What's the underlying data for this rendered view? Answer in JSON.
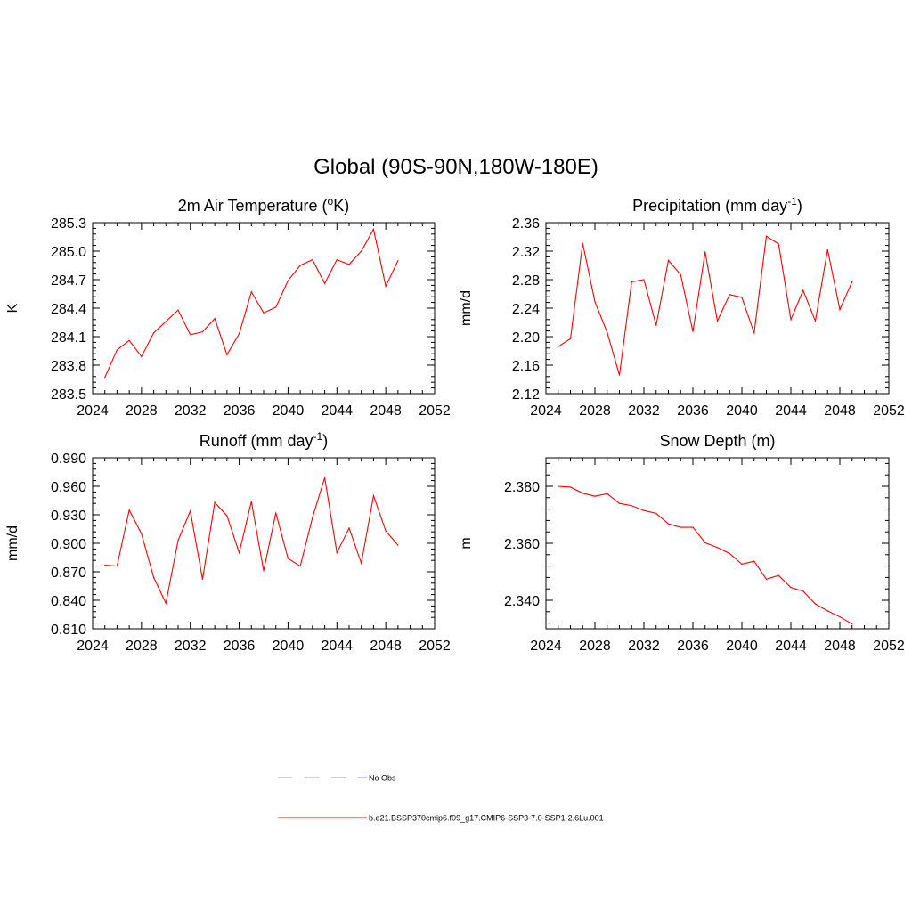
{
  "figure": {
    "title": "Global (90S-90N,180W-180E)",
    "line_color": "#ff0000",
    "obs_line_color": "#aaaaee"
  },
  "legend": {
    "obs_label": "No Obs",
    "model_label": "b.e21.BSSP370cmip6.f09_g17.CMIP6-SSP3-7.0-SSP1-2.6Lu.001"
  },
  "chart_data": [
    {
      "type": "line",
      "title": "2m Air Temperature (",
      "title_sup": "o",
      "title_after": "K)",
      "ylabel": "K",
      "xlim": [
        2024,
        2052
      ],
      "ylim": [
        283.5,
        285.3
      ],
      "xticks": [
        "2024",
        "2028",
        "2032",
        "2036",
        "2040",
        "2044",
        "2048",
        "2052"
      ],
      "yticks": [
        "283.5",
        "283.8",
        "284.1",
        "284.4",
        "284.7",
        "285.0",
        "285.3"
      ],
      "x": [
        2025,
        2026,
        2027,
        2028,
        2029,
        2030,
        2031,
        2032,
        2033,
        2034,
        2035,
        2036,
        2037,
        2038,
        2039,
        2040,
        2041,
        2042,
        2043,
        2044,
        2045,
        2046,
        2047,
        2048,
        2049
      ],
      "values": [
        283.67,
        283.96,
        284.06,
        283.89,
        284.14,
        284.26,
        284.38,
        284.12,
        284.15,
        284.29,
        283.91,
        284.13,
        284.57,
        284.35,
        284.41,
        284.69,
        284.85,
        284.91,
        284.66,
        284.91,
        284.86,
        285.0,
        285.23,
        284.63,
        284.9
      ]
    },
    {
      "type": "line",
      "title": "Precipitation (mm day",
      "title_sup": "-1",
      "title_after": ")",
      "ylabel": "mm/d",
      "xlim": [
        2024,
        2052
      ],
      "ylim": [
        2.12,
        2.36
      ],
      "xticks": [
        "2024",
        "2028",
        "2032",
        "2036",
        "2040",
        "2044",
        "2048",
        "2052"
      ],
      "yticks": [
        "2.12",
        "2.16",
        "2.20",
        "2.24",
        "2.28",
        "2.32",
        "2.36"
      ],
      "x": [
        2025,
        2026,
        2027,
        2028,
        2029,
        2030,
        2031,
        2032,
        2033,
        2034,
        2035,
        2036,
        2037,
        2038,
        2039,
        2040,
        2041,
        2042,
        2043,
        2044,
        2045,
        2046,
        2047,
        2048,
        2049
      ],
      "values": [
        2.186,
        2.197,
        2.331,
        2.249,
        2.206,
        2.146,
        2.277,
        2.28,
        2.216,
        2.307,
        2.287,
        2.207,
        2.319,
        2.222,
        2.259,
        2.255,
        2.205,
        2.341,
        2.33,
        2.224,
        2.265,
        2.222,
        2.322,
        2.238,
        2.277
      ]
    },
    {
      "type": "line",
      "title": "Runoff (mm day",
      "title_sup": "-1",
      "title_after": ")",
      "ylabel": "mm/d",
      "xlim": [
        2024,
        2052
      ],
      "ylim": [
        0.81,
        0.99
      ],
      "xticks": [
        "2024",
        "2028",
        "2032",
        "2036",
        "2040",
        "2044",
        "2048",
        "2052"
      ],
      "yticks": [
        "0.810",
        "0.840",
        "0.870",
        "0.900",
        "0.930",
        "0.960",
        "0.990"
      ],
      "x": [
        2025,
        2026,
        2027,
        2028,
        2029,
        2030,
        2031,
        2032,
        2033,
        2034,
        2035,
        2036,
        2037,
        2038,
        2039,
        2040,
        2041,
        2042,
        2043,
        2044,
        2045,
        2046,
        2047,
        2048,
        2049
      ],
      "values": [
        0.877,
        0.876,
        0.935,
        0.91,
        0.864,
        0.837,
        0.903,
        0.934,
        0.862,
        0.943,
        0.929,
        0.89,
        0.944,
        0.871,
        0.932,
        0.884,
        0.876,
        0.927,
        0.969,
        0.89,
        0.916,
        0.879,
        0.95,
        0.913,
        0.898
      ]
    },
    {
      "type": "line",
      "title": "Snow Depth (m)",
      "title_sup": "",
      "title_after": "",
      "ylabel": "m",
      "xlim": [
        2024,
        2052
      ],
      "ylim": [
        2.33,
        2.39
      ],
      "xticks": [
        "2024",
        "2028",
        "2032",
        "2036",
        "2040",
        "2044",
        "2048",
        "2052"
      ],
      "yticks": [
        "2.340",
        "2.360",
        "2.380"
      ],
      "ytick_values": [
        2.34,
        2.36,
        2.38
      ],
      "x": [
        2025,
        2026,
        2027,
        2028,
        2029,
        2030,
        2031,
        2032,
        2033,
        2034,
        2035,
        2036,
        2037,
        2038,
        2039,
        2040,
        2041,
        2042,
        2043,
        2044,
        2045,
        2046,
        2047,
        2048,
        2049
      ],
      "values": [
        2.38,
        2.3797,
        2.3776,
        2.3765,
        2.3774,
        2.374,
        2.3732,
        2.3715,
        2.3705,
        2.3668,
        2.3656,
        2.3656,
        2.3602,
        2.3585,
        2.3564,
        2.3527,
        2.3537,
        2.3474,
        2.3487,
        2.3445,
        2.3432,
        2.3387,
        2.3363,
        2.3342,
        2.3317
      ]
    }
  ]
}
